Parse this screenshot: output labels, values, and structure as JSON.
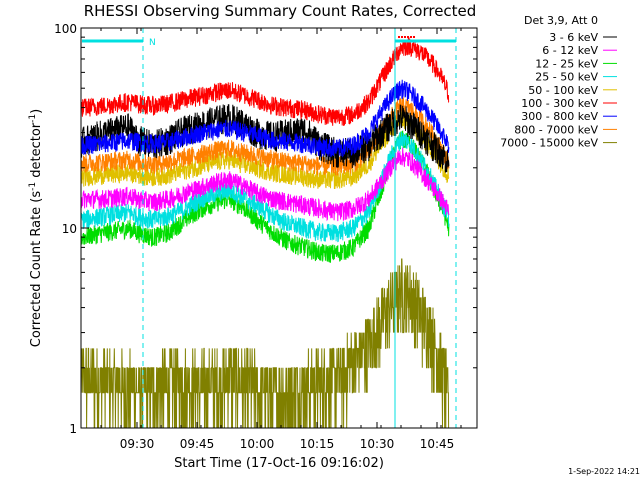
{
  "chart_data": {
    "type": "line",
    "title": "RHESSI Observing Summary Count Rates, Corrected",
    "xlabel": "Start Time (17-Oct-16 09:16:02)",
    "ylabel_parts": [
      "Corrected Count Rate (s",
      "-1",
      " detector",
      "-1",
      ")"
    ],
    "timestamp": "1-Sep-2022 14:21",
    "y_scale": "log",
    "ylim": [
      1,
      100
    ],
    "x_range_minutes": [
      0,
      99
    ],
    "x_ticks": [
      {
        "label": "09:30",
        "min": 14
      },
      {
        "label": "09:45",
        "min": 29
      },
      {
        "label": "10:00",
        "min": 44
      },
      {
        "label": "10:15",
        "min": 59
      },
      {
        "label": "10:30",
        "min": 74
      },
      {
        "label": "10:45",
        "min": 89
      }
    ],
    "y_tick_labels": [
      {
        "label": "1",
        "value": 1
      },
      {
        "label": "10",
        "value": 10
      },
      {
        "label": "100",
        "value": 100
      }
    ],
    "legend_header": "Det 3,9, Att 0",
    "series": [
      {
        "name": "3 - 6 keV",
        "color": "#000000",
        "points": [
          [
            0,
            27
          ],
          [
            6,
            30
          ],
          [
            12,
            32
          ],
          [
            14,
            28
          ],
          [
            18,
            26
          ],
          [
            22,
            28
          ],
          [
            26,
            31
          ],
          [
            30,
            33
          ],
          [
            34,
            35
          ],
          [
            37,
            36
          ],
          [
            40,
            34
          ],
          [
            44,
            30
          ],
          [
            48,
            29
          ],
          [
            52,
            30
          ],
          [
            56,
            31
          ],
          [
            60,
            26
          ],
          [
            64,
            24
          ],
          [
            68,
            24
          ],
          [
            72,
            26
          ],
          [
            75,
            30
          ],
          [
            78,
            34
          ],
          [
            80,
            36
          ],
          [
            82,
            34
          ],
          [
            85,
            30
          ],
          [
            88,
            26
          ],
          [
            90,
            24
          ],
          [
            92,
            21
          ]
        ]
      },
      {
        "name": "6 - 12 keV",
        "color": "#ff00ff",
        "points": [
          [
            0,
            14
          ],
          [
            6,
            14
          ],
          [
            12,
            14.5
          ],
          [
            14,
            14
          ],
          [
            18,
            13.5
          ],
          [
            22,
            14
          ],
          [
            26,
            15
          ],
          [
            30,
            16
          ],
          [
            34,
            17
          ],
          [
            37,
            17.5
          ],
          [
            40,
            16.5
          ],
          [
            44,
            15
          ],
          [
            48,
            14
          ],
          [
            52,
            13.5
          ],
          [
            56,
            13
          ],
          [
            60,
            12.5
          ],
          [
            64,
            12
          ],
          [
            68,
            12.5
          ],
          [
            72,
            14
          ],
          [
            75,
            17
          ],
          [
            78,
            21
          ],
          [
            80,
            23
          ],
          [
            82,
            22
          ],
          [
            85,
            19
          ],
          [
            88,
            16
          ],
          [
            90,
            14
          ],
          [
            92,
            12
          ]
        ]
      },
      {
        "name": "12 - 25 keV",
        "color": "#00dd00",
        "points": [
          [
            0,
            9
          ],
          [
            6,
            9.5
          ],
          [
            12,
            10
          ],
          [
            14,
            9.5
          ],
          [
            18,
            9
          ],
          [
            22,
            9.5
          ],
          [
            26,
            11
          ],
          [
            30,
            12.5
          ],
          [
            34,
            13.5
          ],
          [
            37,
            14
          ],
          [
            40,
            13
          ],
          [
            44,
            11
          ],
          [
            48,
            9.5
          ],
          [
            52,
            8.5
          ],
          [
            56,
            8
          ],
          [
            60,
            7.5
          ],
          [
            64,
            7.5
          ],
          [
            68,
            8
          ],
          [
            72,
            10
          ],
          [
            75,
            15
          ],
          [
            78,
            23
          ],
          [
            80,
            28
          ],
          [
            82,
            27
          ],
          [
            85,
            22
          ],
          [
            88,
            16
          ],
          [
            90,
            13
          ],
          [
            92,
            10
          ]
        ]
      },
      {
        "name": "25 - 50 keV",
        "color": "#00e0e0",
        "points": [
          [
            0,
            11
          ],
          [
            6,
            11.5
          ],
          [
            12,
            12
          ],
          [
            14,
            11.5
          ],
          [
            18,
            11
          ],
          [
            22,
            11.5
          ],
          [
            26,
            12.5
          ],
          [
            30,
            14
          ],
          [
            34,
            15
          ],
          [
            37,
            15.5
          ],
          [
            40,
            14.5
          ],
          [
            44,
            13
          ],
          [
            48,
            11.5
          ],
          [
            52,
            10.5
          ],
          [
            56,
            10
          ],
          [
            60,
            9.5
          ],
          [
            64,
            9.5
          ],
          [
            68,
            10
          ],
          [
            72,
            12
          ],
          [
            75,
            17
          ],
          [
            78,
            24
          ],
          [
            80,
            28
          ],
          [
            82,
            27
          ],
          [
            85,
            22
          ],
          [
            88,
            17
          ],
          [
            90,
            14
          ],
          [
            92,
            11
          ]
        ]
      },
      {
        "name": "50 - 100 keV",
        "color": "#e0c000",
        "points": [
          [
            0,
            18
          ],
          [
            6,
            18.5
          ],
          [
            12,
            19
          ],
          [
            14,
            18.5
          ],
          [
            18,
            18
          ],
          [
            22,
            18.5
          ],
          [
            26,
            19.5
          ],
          [
            30,
            20.5
          ],
          [
            34,
            21.5
          ],
          [
            37,
            22
          ],
          [
            40,
            21
          ],
          [
            44,
            20
          ],
          [
            48,
            19
          ],
          [
            52,
            18.5
          ],
          [
            56,
            18
          ],
          [
            60,
            17.5
          ],
          [
            64,
            17.5
          ],
          [
            68,
            18
          ],
          [
            72,
            21
          ],
          [
            75,
            26
          ],
          [
            78,
            32
          ],
          [
            80,
            35
          ],
          [
            82,
            34
          ],
          [
            85,
            29
          ],
          [
            88,
            24
          ],
          [
            90,
            21
          ],
          [
            92,
            18
          ]
        ]
      },
      {
        "name": "100 - 300 keV",
        "color": "#ff0000",
        "points": [
          [
            0,
            40
          ],
          [
            6,
            41
          ],
          [
            12,
            43
          ],
          [
            14,
            42
          ],
          [
            18,
            41
          ],
          [
            22,
            42
          ],
          [
            26,
            44
          ],
          [
            30,
            46
          ],
          [
            34,
            48
          ],
          [
            37,
            49
          ],
          [
            40,
            47
          ],
          [
            44,
            44
          ],
          [
            48,
            41
          ],
          [
            52,
            40
          ],
          [
            56,
            39
          ],
          [
            60,
            37
          ],
          [
            64,
            36
          ],
          [
            68,
            37
          ],
          [
            72,
            43
          ],
          [
            75,
            55
          ],
          [
            78,
            70
          ],
          [
            80,
            80
          ],
          [
            82,
            82
          ],
          [
            85,
            76
          ],
          [
            88,
            66
          ],
          [
            90,
            57
          ],
          [
            92,
            47
          ]
        ]
      },
      {
        "name": "300 - 800 keV",
        "color": "#0000ff",
        "points": [
          [
            0,
            26
          ],
          [
            6,
            26.5
          ],
          [
            12,
            27.5
          ],
          [
            14,
            27
          ],
          [
            18,
            26.5
          ],
          [
            22,
            27
          ],
          [
            26,
            28.5
          ],
          [
            30,
            30
          ],
          [
            34,
            31
          ],
          [
            37,
            31.5
          ],
          [
            40,
            30.5
          ],
          [
            44,
            29
          ],
          [
            48,
            27.5
          ],
          [
            52,
            27
          ],
          [
            56,
            26.5
          ],
          [
            60,
            25.5
          ],
          [
            64,
            25
          ],
          [
            68,
            26
          ],
          [
            72,
            30
          ],
          [
            75,
            38
          ],
          [
            78,
            46
          ],
          [
            80,
            50
          ],
          [
            82,
            48
          ],
          [
            85,
            42
          ],
          [
            88,
            35
          ],
          [
            90,
            30
          ],
          [
            92,
            26
          ]
        ]
      },
      {
        "name": "800 - 7000 keV",
        "color": "#ff8000",
        "points": [
          [
            0,
            21
          ],
          [
            6,
            21.5
          ],
          [
            12,
            22
          ],
          [
            14,
            21.5
          ],
          [
            18,
            21
          ],
          [
            22,
            21.5
          ],
          [
            26,
            22.5
          ],
          [
            30,
            23.5
          ],
          [
            34,
            24.5
          ],
          [
            37,
            25
          ],
          [
            40,
            24
          ],
          [
            44,
            23
          ],
          [
            48,
            22
          ],
          [
            52,
            21.5
          ],
          [
            56,
            21
          ],
          [
            60,
            20.5
          ],
          [
            64,
            20.5
          ],
          [
            68,
            21
          ],
          [
            72,
            24
          ],
          [
            75,
            30
          ],
          [
            78,
            37
          ],
          [
            80,
            41
          ],
          [
            82,
            40
          ],
          [
            85,
            35
          ],
          [
            88,
            29
          ],
          [
            90,
            25
          ],
          [
            92,
            21
          ]
        ]
      },
      {
        "name": "7000 - 15000 keV",
        "color": "#808000",
        "points": [
          [
            0,
            1.9
          ],
          [
            6,
            1.8
          ],
          [
            12,
            1.7
          ],
          [
            14,
            1.6
          ],
          [
            18,
            1.7
          ],
          [
            22,
            1.8
          ],
          [
            26,
            1.8
          ],
          [
            30,
            1.7
          ],
          [
            34,
            1.8
          ],
          [
            37,
            1.9
          ],
          [
            40,
            1.8
          ],
          [
            44,
            1.7
          ],
          [
            48,
            1.6
          ],
          [
            52,
            1.6
          ],
          [
            56,
            1.7
          ],
          [
            60,
            1.8
          ],
          [
            64,
            1.9
          ],
          [
            68,
            2.2
          ],
          [
            72,
            2.8
          ],
          [
            75,
            3.6
          ],
          [
            78,
            4.6
          ],
          [
            80,
            5.2
          ],
          [
            82,
            5.0
          ],
          [
            85,
            4.0
          ],
          [
            88,
            3.0
          ],
          [
            90,
            2.2
          ],
          [
            92,
            1.4
          ]
        ]
      }
    ]
  }
}
